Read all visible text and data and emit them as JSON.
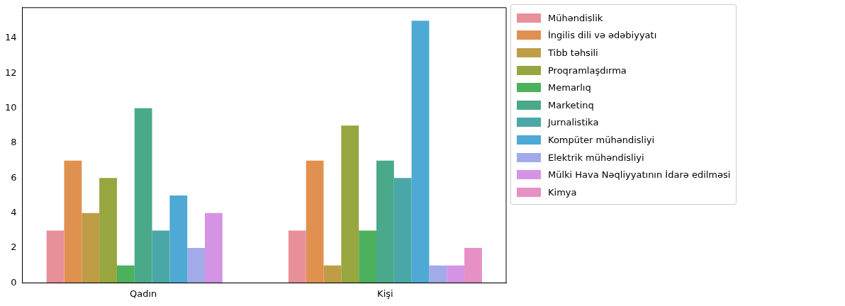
{
  "chart_data": {
    "type": "bar",
    "categories": [
      "Qadın",
      "Kişi"
    ],
    "series": [
      {
        "name": "Mühəndislik",
        "color": "#e8909a",
        "values": [
          3,
          3
        ]
      },
      {
        "name": "İngilis dili və ədəbiyyatı",
        "color": "#e0914f",
        "values": [
          7,
          7
        ]
      },
      {
        "name": "Tibb təhsili",
        "color": "#bf9d47",
        "values": [
          4,
          1
        ]
      },
      {
        "name": "Proqramlaşdırma",
        "color": "#98a640",
        "values": [
          6,
          9
        ]
      },
      {
        "name": "Memarlıq",
        "color": "#4cb05c",
        "values": [
          1,
          3
        ]
      },
      {
        "name": "Marketinq",
        "color": "#4aa98a",
        "values": [
          10,
          7
        ]
      },
      {
        "name": "Jurnalistika",
        "color": "#4aa7a8",
        "values": [
          3,
          6
        ]
      },
      {
        "name": "Kompüter mühəndisliyi",
        "color": "#4ea9d4",
        "values": [
          5,
          15
        ]
      },
      {
        "name": "Elektrik mühəndisliyi",
        "color": "#a3aae9",
        "values": [
          2,
          1
        ]
      },
      {
        "name": "Mülki Hava Nəqliyyatının İdarə edilməsi",
        "color": "#d594e3",
        "values": [
          4,
          1
        ]
      },
      {
        "name": "Kimya",
        "color": "#e690c6",
        "values": [
          null,
          2
        ]
      }
    ],
    "ylim": [
      0,
      15.75
    ],
    "yticks": [
      0,
      2,
      4,
      6,
      8,
      10,
      12,
      14
    ],
    "grid": false,
    "legend": "top right"
  }
}
